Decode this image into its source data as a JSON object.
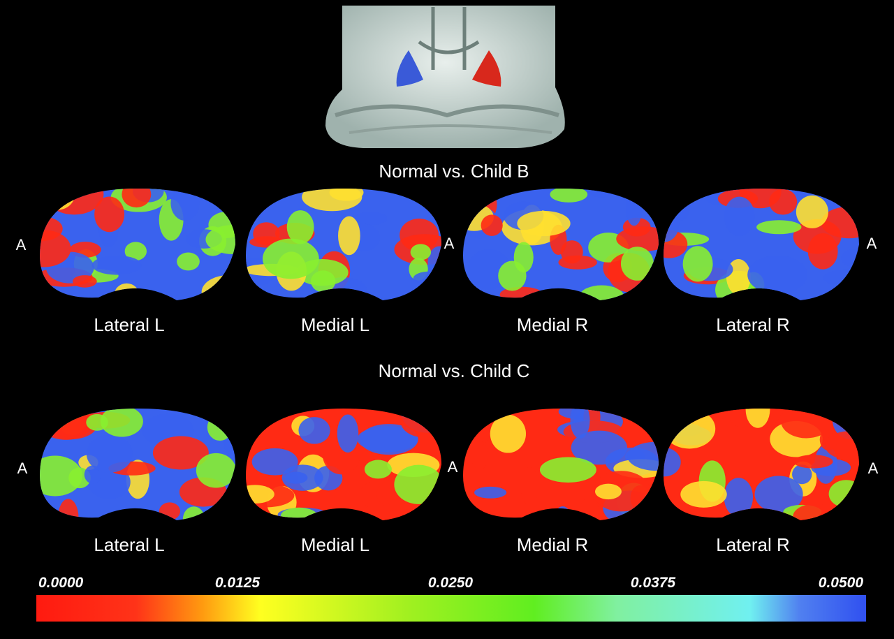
{
  "panels": [
    {
      "title": "Normal vs. Child B",
      "views": [
        "Lateral L",
        "Medial L",
        "Medial R",
        "Lateral R"
      ],
      "anterior_labels": [
        "A",
        "A",
        "A"
      ]
    },
    {
      "title": "Normal vs. Child C",
      "views": [
        "Lateral L",
        "Medial L",
        "Medial R",
        "Lateral R"
      ],
      "anterior_labels": [
        "A",
        "A",
        "A"
      ]
    }
  ],
  "colorbar": {
    "ticks": [
      "0.0000",
      "0.0125",
      "0.0250",
      "0.0375",
      "0.0500"
    ]
  }
}
